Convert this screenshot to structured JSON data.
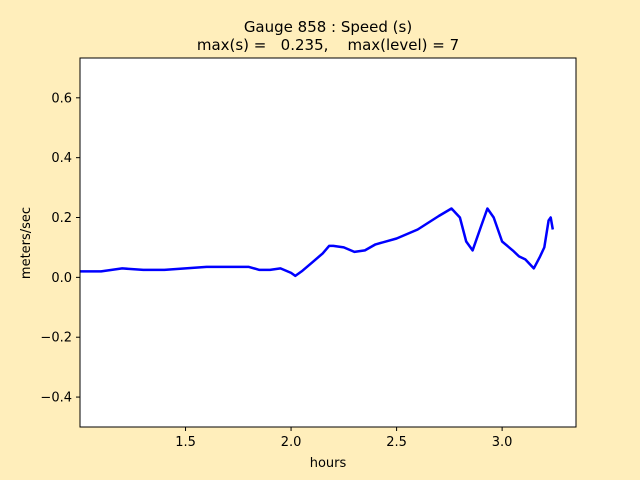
{
  "chart_data": {
    "type": "line",
    "title_line1": "Gauge 858 : Speed (s)",
    "title_line2": "max(s) =   0.235,    max(level) = 7",
    "xlabel": "hours",
    "ylabel": "meters/sec",
    "xlim": [
      1.0,
      3.35
    ],
    "ylim": [
      -0.5,
      0.733
    ],
    "x_ticks": [
      1.5,
      2.0,
      2.5,
      3.0
    ],
    "x_tick_labels": [
      "1.5",
      "2.0",
      "2.5",
      "3.0"
    ],
    "y_ticks": [
      -0.4,
      -0.2,
      0.0,
      0.2,
      0.4,
      0.6
    ],
    "y_tick_labels": [
      "−0.4",
      "−0.2",
      "0.0",
      "0.2",
      "0.4",
      "0.6"
    ],
    "grid": false,
    "series": [
      {
        "color": "#0000ff",
        "x": [
          1.0,
          1.1,
          1.15,
          1.2,
          1.3,
          1.4,
          1.5,
          1.6,
          1.7,
          1.8,
          1.85,
          1.9,
          1.95,
          2.0,
          2.02,
          2.05,
          2.1,
          2.15,
          2.18,
          2.2,
          2.25,
          2.3,
          2.35,
          2.4,
          2.5,
          2.6,
          2.7,
          2.76,
          2.8,
          2.83,
          2.86,
          2.9,
          2.93,
          2.96,
          3.0,
          3.05,
          3.08,
          3.11,
          3.15,
          3.18,
          3.2,
          3.22,
          3.23,
          3.24
        ],
        "y": [
          0.02,
          0.02,
          0.025,
          0.03,
          0.025,
          0.025,
          0.03,
          0.035,
          0.035,
          0.035,
          0.025,
          0.025,
          0.03,
          0.015,
          0.005,
          0.02,
          0.05,
          0.08,
          0.105,
          0.105,
          0.1,
          0.085,
          0.09,
          0.11,
          0.13,
          0.16,
          0.205,
          0.23,
          0.2,
          0.12,
          0.09,
          0.17,
          0.23,
          0.2,
          0.12,
          0.09,
          0.07,
          0.06,
          0.03,
          0.07,
          0.1,
          0.19,
          0.2,
          0.16
        ]
      }
    ]
  }
}
